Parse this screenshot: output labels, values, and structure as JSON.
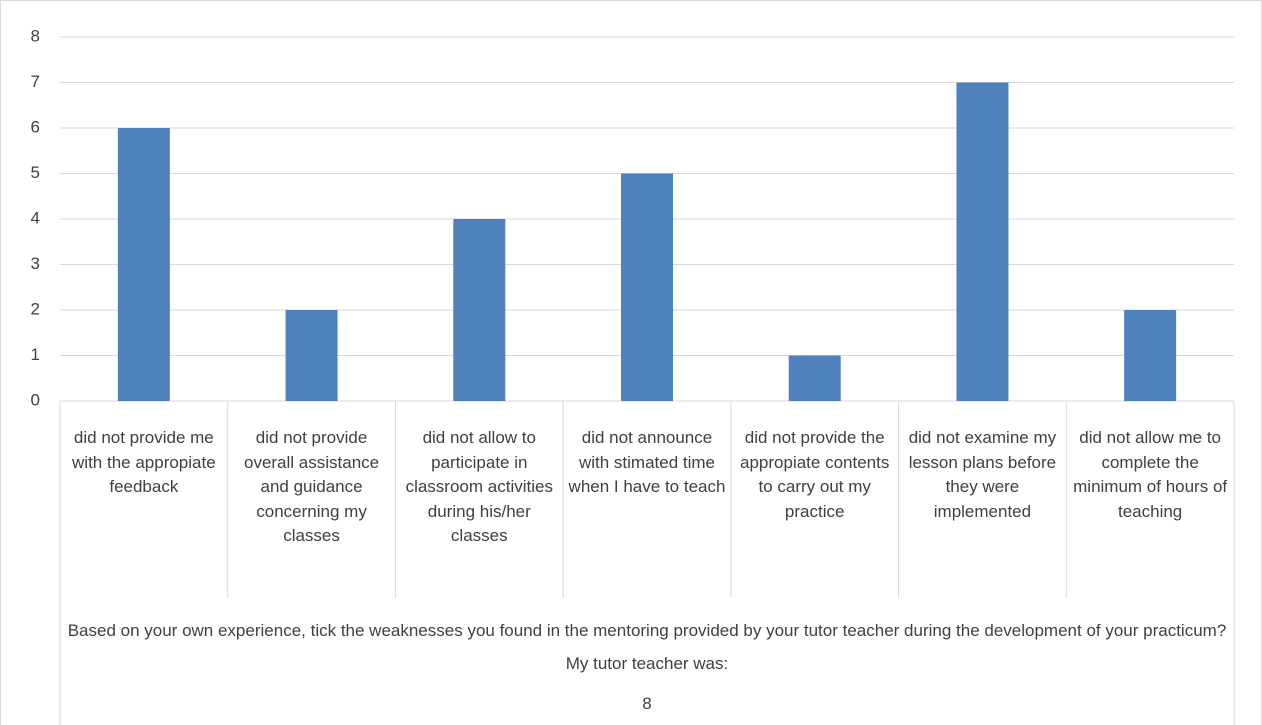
{
  "chart_data": {
    "type": "bar",
    "categories": [
      "did not provide me with the appropiate feedback",
      "did not provide overall assistance and guidance concerning my classes",
      "did not allow to participate in classroom activities during his/her classes",
      "did not announce with stimated time when I have to teach",
      "did not provide the appropiate contents to carry out my practice",
      "did not examine my lesson plans before they were implemented",
      "did not allow me to complete the minimum of hours of teaching"
    ],
    "values": [
      6,
      2,
      4,
      5,
      1,
      7,
      2
    ],
    "color": "#4f81bd",
    "x_label": "Based on your own experience, tick the weaknesses  you found in the mentoring provided by your tutor teacher during the development of your practicum? My tutor teacher was:",
    "x_sublabel": "8",
    "ylim": [
      0,
      8
    ],
    "yticks": [
      0,
      1,
      2,
      3,
      4,
      5,
      6,
      7,
      8
    ],
    "grid": true
  }
}
